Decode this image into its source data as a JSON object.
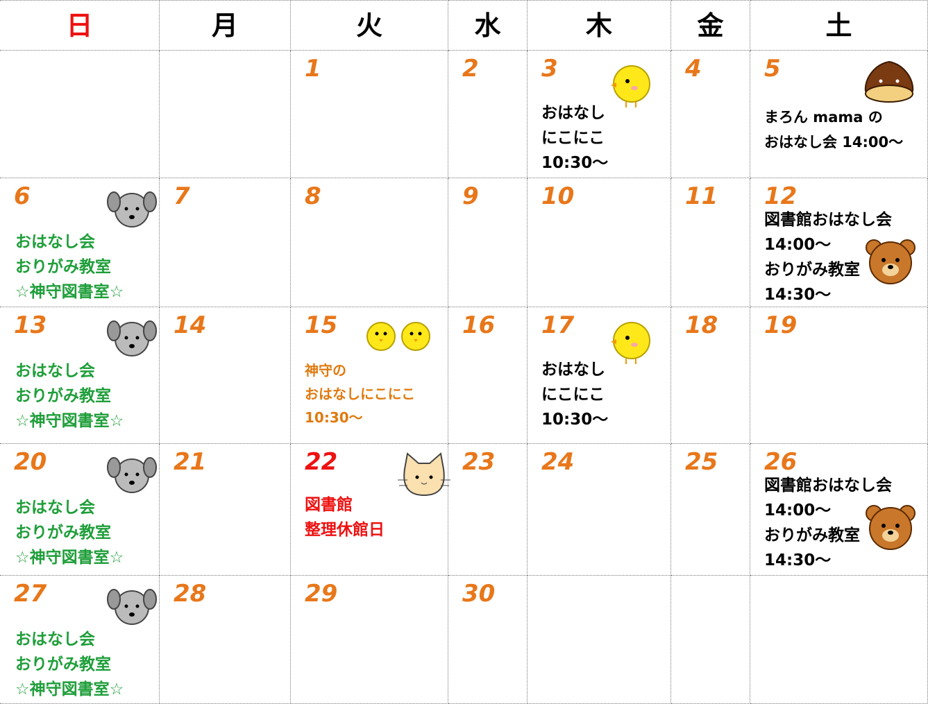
{
  "header": {
    "days": [
      "日",
      "月",
      "火",
      "水",
      "木",
      "金",
      "土"
    ]
  },
  "weeks": [
    [
      null,
      null,
      {
        "date": 1
      },
      {
        "date": 2
      },
      {
        "date": 3,
        "lines": [
          "おはなし",
          "にこにこ",
          "10:30～"
        ]
      },
      {
        "date": 4
      },
      {
        "date": 5,
        "lines": [
          "まろん mama の",
          "おはなし会 14:00～"
        ]
      }
    ],
    [
      {
        "date": 6,
        "lines": [
          "おはなし会",
          "おりがみ教室",
          "☆神守図書室☆"
        ]
      },
      {
        "date": 7
      },
      {
        "date": 8
      },
      {
        "date": 9
      },
      {
        "date": 10
      },
      {
        "date": 11
      },
      {
        "date": 12,
        "lines": [
          "図書館おはなし会",
          "14:00～",
          "おりがみ教室",
          "14:30～"
        ]
      }
    ],
    [
      {
        "date": 13,
        "lines": [
          "おはなし会",
          "おりがみ教室",
          "☆神守図書室☆"
        ]
      },
      {
        "date": 14
      },
      {
        "date": 15,
        "lines": [
          "神守の",
          "おはなしにこにこ",
          "10:30～"
        ]
      },
      {
        "date": 16
      },
      {
        "date": 17,
        "lines": [
          "おはなし",
          "にこにこ",
          "10:30～"
        ]
      },
      {
        "date": 18
      },
      {
        "date": 19
      }
    ],
    [
      {
        "date": 20,
        "lines": [
          "おはなし会",
          "おりがみ教室",
          "☆神守図書室☆"
        ]
      },
      {
        "date": 21
      },
      {
        "date": 22,
        "lines": [
          "図書館",
          "整理休館日"
        ]
      },
      {
        "date": 23
      },
      {
        "date": 24
      },
      {
        "date": 25
      },
      {
        "date": 26,
        "lines": [
          "図書館おはなし会",
          "14:00～",
          "おりがみ教室",
          "14:30～"
        ]
      }
    ],
    [
      {
        "date": 27,
        "lines": [
          "おはなし会",
          "おりがみ教室",
          "☆神守図書室☆"
        ]
      },
      {
        "date": 28
      },
      {
        "date": 29
      },
      {
        "date": 30
      },
      null,
      null,
      null
    ]
  ]
}
